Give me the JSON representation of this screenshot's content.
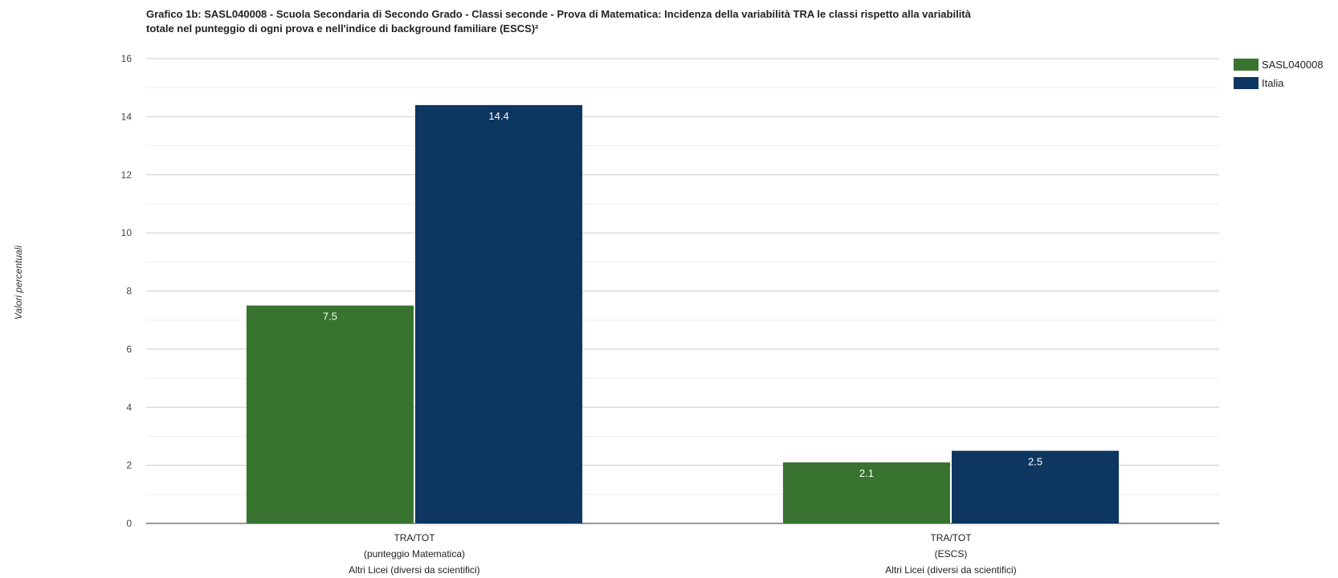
{
  "chart_data": {
    "type": "bar",
    "title_lines": [
      "Grafico 1b: SASL040008 - Scuola Secondaria di Secondo Grado - Classi seconde - Prova di Matematica: Incidenza della variabilità TRA le classi rispetto alla variabilità",
      "totale nel punteggio di ogni prova e nell'indice di background familiare (ESCS)²"
    ],
    "ylabel": "Valori percentuali",
    "xlabel": "",
    "ylim": [
      0,
      16
    ],
    "yticks": [
      0,
      2,
      4,
      6,
      8,
      10,
      12,
      14,
      16
    ],
    "grid": true,
    "legend_position": "right",
    "categories": [
      [
        "TRA/TOT",
        "(punteggio Matematica)",
        "Altri Licei (diversi da scientifici)"
      ],
      [
        "TRA/TOT",
        "(ESCS)",
        "Altri Licei (diversi da scientifici)"
      ]
    ],
    "series": [
      {
        "name": "SASL040008",
        "color": "#38732f",
        "values": [
          7.5,
          2.1
        ],
        "labels": [
          "7.5",
          "2.1"
        ]
      },
      {
        "name": "Italia",
        "color": "#0d3660",
        "values": [
          14.4,
          2.5
        ],
        "labels": [
          "14.4",
          "2.5"
        ]
      }
    ]
  }
}
